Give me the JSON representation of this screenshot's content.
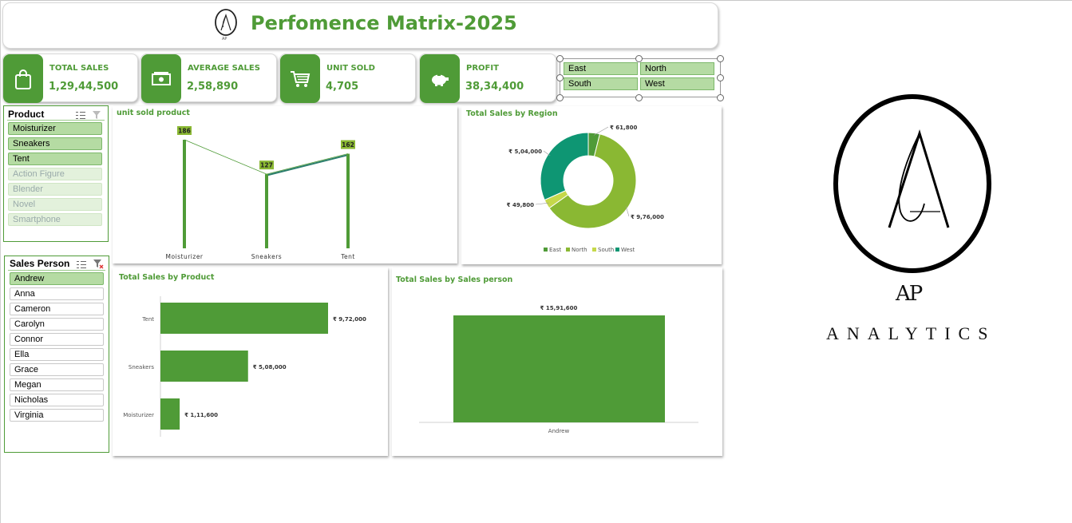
{
  "header": {
    "title": "Perfomence Matrix-2025",
    "logo_caption": "AP"
  },
  "kpis": [
    {
      "label": "TOTAL SALES",
      "value": "1,29,44,500",
      "icon": "shopping-bag-icon"
    },
    {
      "label": "AVERAGE  SALES",
      "value": "2,58,890",
      "icon": "money-icon"
    },
    {
      "label": "UNIT SOLD",
      "value": "4,705",
      "icon": "cart-icon"
    },
    {
      "label": "PROFIT",
      "value": "38,34,400",
      "icon": "piggy-bank-icon"
    }
  ],
  "region_slicer": {
    "items": [
      "East",
      "North",
      "South",
      "West"
    ]
  },
  "product_slicer": {
    "title": "Product",
    "items": [
      {
        "label": "Moisturizer",
        "state": "selected"
      },
      {
        "label": "Sneakers",
        "state": "selected"
      },
      {
        "label": "Tent",
        "state": "selected"
      },
      {
        "label": "Action Figure",
        "state": "dim"
      },
      {
        "label": "Blender",
        "state": "dim"
      },
      {
        "label": "Novel",
        "state": "dim"
      },
      {
        "label": "Smartphone",
        "state": "dim"
      }
    ]
  },
  "salesperson_slicer": {
    "title": "Sales Person",
    "items": [
      {
        "label": "Andrew",
        "state": "selected"
      },
      {
        "label": "Anna",
        "state": "white"
      },
      {
        "label": "Cameron",
        "state": "white"
      },
      {
        "label": "Carolyn",
        "state": "white"
      },
      {
        "label": "Connor",
        "state": "white"
      },
      {
        "label": "Ella",
        "state": "white"
      },
      {
        "label": "Grace",
        "state": "white"
      },
      {
        "label": "Megan",
        "state": "white"
      },
      {
        "label": "Nicholas",
        "state": "white"
      },
      {
        "label": "Virginia",
        "state": "white"
      }
    ]
  },
  "brand": {
    "monogram": "AP",
    "name": "ANALYTICS"
  },
  "colors": {
    "accent": "#4f9b37",
    "north": "#8ab833",
    "west": "#0e9673",
    "east": "#4f9b37",
    "south": "#c5d84a"
  },
  "chart_data": [
    {
      "type": "line",
      "title": "unit sold  product",
      "categories": [
        "Moisturizer",
        "Sneakers",
        "Tent"
      ],
      "values": [
        186,
        127,
        162
      ],
      "data_labels": [
        "186",
        "127",
        "162"
      ]
    },
    {
      "type": "pie",
      "title": "Total Sales by Region",
      "legend_placement": "bottom",
      "categories": [
        "East",
        "North",
        "South",
        "West"
      ],
      "values": [
        61800,
        976000,
        49800,
        504000
      ],
      "data_labels": [
        "₹ 61,800",
        "₹ 9,76,000",
        "₹ 49,800",
        "₹ 5,04,000"
      ],
      "legend": [
        "East",
        "North",
        "South",
        "West"
      ]
    },
    {
      "type": "bar",
      "orientation": "horizontal",
      "title": "Total Sales by Product",
      "categories": [
        "Tent",
        "Sneakers",
        "Moisturizer"
      ],
      "values": [
        972000,
        508000,
        111600
      ],
      "data_labels": [
        "₹ 9,72,000",
        "₹ 5,08,000",
        "₹ 1,11,600"
      ]
    },
    {
      "type": "bar",
      "title": "Total Sales by Sales person",
      "categories": [
        "Andrew"
      ],
      "values": [
        1591600
      ],
      "data_labels": [
        "₹ 15,91,600"
      ]
    }
  ]
}
